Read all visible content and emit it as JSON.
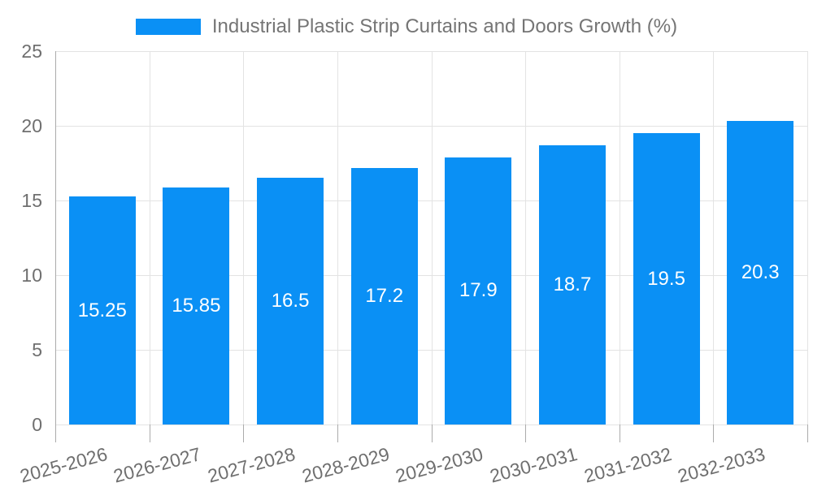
{
  "legend": {
    "label": "Industrial Plastic Strip Curtains and Doors Growth (%)"
  },
  "chart_data": {
    "type": "bar",
    "title": "Industrial Plastic Strip Curtains and Doors Growth (%)",
    "categories": [
      "2025-2026",
      "2026-2027",
      "2027-2028",
      "2028-2029",
      "2029-2030",
      "2030-2031",
      "2031-2032",
      "2032-2033"
    ],
    "values": [
      15.25,
      15.85,
      16.5,
      17.2,
      17.9,
      18.7,
      19.5,
      20.3
    ],
    "bar_value_labels": [
      "15.25",
      "15.85",
      "16.5",
      "17.2",
      "17.9",
      "18.7",
      "19.5",
      "20.3"
    ],
    "xlabel": "",
    "ylabel": "",
    "ylim": [
      0,
      25
    ],
    "yticks": [
      0,
      5,
      10,
      15,
      20,
      25
    ],
    "grid": true,
    "legend_position": "top-center",
    "colors": {
      "bar": "#0a90f5",
      "grid": "#e3e3e3",
      "axis_line": "#ababab",
      "tick_text": "#6f6f6f",
      "legend_text": "#757575",
      "bar_label_text": "#ffffff",
      "background": "#ffffff"
    }
  }
}
